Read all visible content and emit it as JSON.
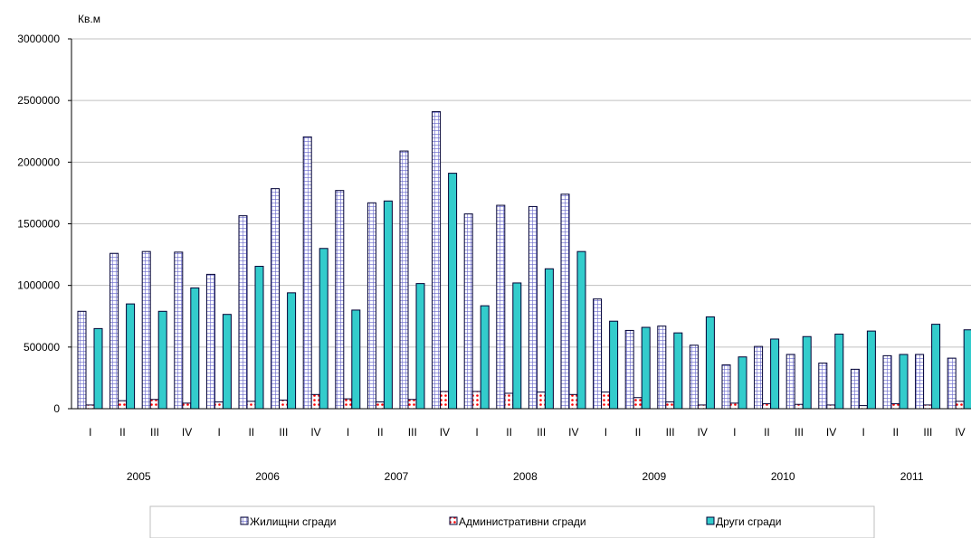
{
  "chart_data": {
    "type": "bar",
    "ylabel": "Кв.м",
    "ylim": [
      0,
      3000000
    ],
    "yticks": [
      "0",
      "500000",
      "1000000",
      "1500000",
      "2000000",
      "2500000",
      "3000000"
    ],
    "grid": true,
    "legend_position": "bottom",
    "categories": [
      "I",
      "II",
      "III",
      "IV",
      "I",
      "II",
      "III",
      "IV",
      "I",
      "II",
      "III",
      "IV",
      "I",
      "II",
      "III",
      "IV",
      "I",
      "II",
      "III",
      "IV",
      "I",
      "II",
      "III",
      "IV",
      "I",
      "II",
      "III",
      "IV"
    ],
    "years": [
      "2005",
      "2006",
      "2007",
      "2008",
      "2009",
      "2010",
      "2011"
    ],
    "series": [
      {
        "name": "Жилищни сгради",
        "color": "#ccccff",
        "pattern": "grid",
        "values": [
          790000,
          1260000,
          1275000,
          1270000,
          1090000,
          1565000,
          1785000,
          2205000,
          1770000,
          1670000,
          2090000,
          2410000,
          1580000,
          1650000,
          1640000,
          1740000,
          890000,
          635000,
          670000,
          515000,
          355000,
          505000,
          440000,
          370000,
          320000,
          430000,
          440000,
          410000
        ]
      },
      {
        "name": "Административни сгради",
        "color": "#ffffff",
        "pattern": "dots",
        "values": [
          30000,
          65000,
          75000,
          45000,
          55000,
          60000,
          70000,
          115000,
          80000,
          55000,
          75000,
          140000,
          140000,
          125000,
          135000,
          115000,
          135000,
          90000,
          55000,
          30000,
          45000,
          40000,
          35000,
          30000,
          25000,
          40000,
          30000,
          60000
        ]
      },
      {
        "name": "Други сгради",
        "color": "#33cccc",
        "pattern": "solid",
        "values": [
          650000,
          850000,
          790000,
          980000,
          765000,
          1155000,
          940000,
          1300000,
          800000,
          1685000,
          1015000,
          1910000,
          835000,
          1020000,
          1135000,
          1275000,
          710000,
          660000,
          615000,
          745000,
          420000,
          565000,
          585000,
          605000,
          630000,
          440000,
          685000,
          640000
        ]
      }
    ]
  }
}
